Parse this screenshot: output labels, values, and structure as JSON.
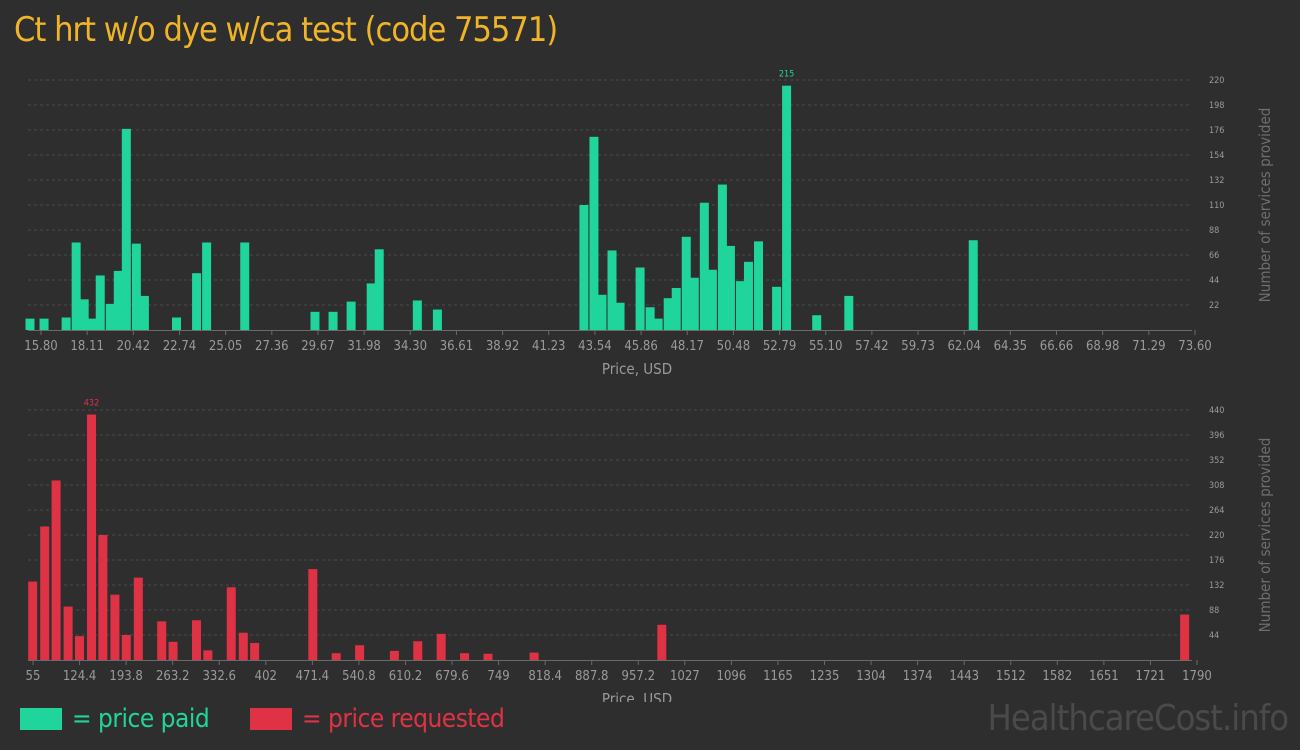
{
  "title": "Ct hrt w/o dye w/ca test (code 75571)",
  "watermark": "HealthcareCost.info",
  "colors": {
    "paid": "#1fd59b",
    "requested": "#e03245",
    "title": "#f0b428",
    "axis_text": "#9a9a9a"
  },
  "legend": {
    "paid": "= price paid",
    "requested": "= price requested"
  },
  "chart_data": [
    {
      "type": "bar",
      "series_key": "paid",
      "xlabel": "Price, USD",
      "ylabel": "Number of services provided",
      "x_ticks": [
        "15.80",
        "18.11",
        "20.42",
        "22.74",
        "25.05",
        "27.36",
        "29.67",
        "31.98",
        "34.30",
        "36.61",
        "38.92",
        "41.23",
        "43.54",
        "45.86",
        "48.17",
        "50.48",
        "52.79",
        "55.10",
        "57.42",
        "59.73",
        "62.04",
        "64.35",
        "66.66",
        "68.98",
        "71.29",
        "73.60"
      ],
      "y_ticks": [
        "22",
        "44",
        "66",
        "88",
        "110",
        "132",
        "154",
        "176",
        "198",
        "220"
      ],
      "ylim": [
        0,
        220
      ],
      "x_range": [
        15.8,
        73.6
      ],
      "peak_label": "215",
      "bars": [
        {
          "x": 15.8,
          "y": 10
        },
        {
          "x": 16.5,
          "y": 10
        },
        {
          "x": 17.6,
          "y": 11
        },
        {
          "x": 18.1,
          "y": 77
        },
        {
          "x": 18.5,
          "y": 27
        },
        {
          "x": 18.9,
          "y": 10
        },
        {
          "x": 19.3,
          "y": 48
        },
        {
          "x": 19.8,
          "y": 23
        },
        {
          "x": 20.2,
          "y": 52
        },
        {
          "x": 20.6,
          "y": 177
        },
        {
          "x": 21.1,
          "y": 76
        },
        {
          "x": 21.5,
          "y": 30
        },
        {
          "x": 23.1,
          "y": 11
        },
        {
          "x": 24.1,
          "y": 50
        },
        {
          "x": 24.6,
          "y": 77
        },
        {
          "x": 26.5,
          "y": 77
        },
        {
          "x": 30.0,
          "y": 16
        },
        {
          "x": 30.9,
          "y": 16
        },
        {
          "x": 31.8,
          "y": 25
        },
        {
          "x": 32.8,
          "y": 41
        },
        {
          "x": 33.2,
          "y": 71
        },
        {
          "x": 35.1,
          "y": 26
        },
        {
          "x": 36.1,
          "y": 18
        },
        {
          "x": 43.4,
          "y": 110
        },
        {
          "x": 43.9,
          "y": 170
        },
        {
          "x": 44.3,
          "y": 31
        },
        {
          "x": 44.8,
          "y": 70
        },
        {
          "x": 45.2,
          "y": 24
        },
        {
          "x": 46.2,
          "y": 55
        },
        {
          "x": 46.7,
          "y": 20
        },
        {
          "x": 47.1,
          "y": 10
        },
        {
          "x": 47.6,
          "y": 28
        },
        {
          "x": 48.0,
          "y": 37
        },
        {
          "x": 48.5,
          "y": 82
        },
        {
          "x": 48.9,
          "y": 46
        },
        {
          "x": 49.4,
          "y": 112
        },
        {
          "x": 49.8,
          "y": 53
        },
        {
          "x": 50.3,
          "y": 128
        },
        {
          "x": 50.7,
          "y": 74
        },
        {
          "x": 51.2,
          "y": 43
        },
        {
          "x": 51.6,
          "y": 60
        },
        {
          "x": 52.1,
          "y": 78
        },
        {
          "x": 53.0,
          "y": 38
        },
        {
          "x": 53.5,
          "y": 215
        },
        {
          "x": 55.0,
          "y": 13
        },
        {
          "x": 56.6,
          "y": 30
        },
        {
          "x": 62.8,
          "y": 79
        }
      ]
    },
    {
      "type": "bar",
      "series_key": "requested",
      "xlabel": "Price, USD",
      "ylabel": "Number of services provided",
      "x_ticks": [
        "55",
        "124.4",
        "193.8",
        "263.2",
        "332.6",
        "402",
        "471.4",
        "540.8",
        "610.2",
        "679.6",
        "749",
        "818.4",
        "887.8",
        "957.2",
        "1027",
        "1096",
        "1165",
        "1235",
        "1304",
        "1374",
        "1443",
        "1512",
        "1582",
        "1651",
        "1721",
        "1790"
      ],
      "y_ticks": [
        "44",
        "88",
        "132",
        "176",
        "220",
        "264",
        "308",
        "352",
        "396",
        "440"
      ],
      "ylim": [
        0,
        440
      ],
      "x_range": [
        55,
        1790
      ],
      "peak_label": "432",
      "bars": [
        {
          "x": 59,
          "y": 138
        },
        {
          "x": 77,
          "y": 235
        },
        {
          "x": 94,
          "y": 316
        },
        {
          "x": 112,
          "y": 94
        },
        {
          "x": 129,
          "y": 42
        },
        {
          "x": 147,
          "y": 432
        },
        {
          "x": 164,
          "y": 220
        },
        {
          "x": 182,
          "y": 115
        },
        {
          "x": 199,
          "y": 44
        },
        {
          "x": 217,
          "y": 145
        },
        {
          "x": 252,
          "y": 68
        },
        {
          "x": 269,
          "y": 32
        },
        {
          "x": 304,
          "y": 70
        },
        {
          "x": 321,
          "y": 17
        },
        {
          "x": 356,
          "y": 128
        },
        {
          "x": 374,
          "y": 48
        },
        {
          "x": 391,
          "y": 30
        },
        {
          "x": 478,
          "y": 160
        },
        {
          "x": 513,
          "y": 12
        },
        {
          "x": 548,
          "y": 26
        },
        {
          "x": 600,
          "y": 16
        },
        {
          "x": 635,
          "y": 33
        },
        {
          "x": 670,
          "y": 46
        },
        {
          "x": 705,
          "y": 12
        },
        {
          "x": 740,
          "y": 11
        },
        {
          "x": 809,
          "y": 13
        },
        {
          "x": 1000,
          "y": 62
        },
        {
          "x": 1782,
          "y": 80
        }
      ]
    }
  ]
}
